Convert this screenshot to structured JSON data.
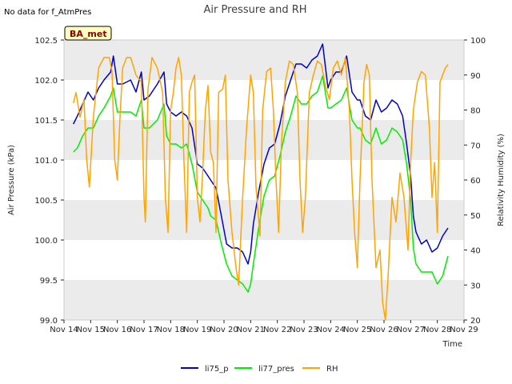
{
  "nodata_text": "No data for f_AtmPres",
  "badge_label": "BA_met",
  "colors": {
    "li75_p": "#0000cc",
    "li77_pres": "#00ee00",
    "RH": "#ffa500",
    "band": "#ebebeb",
    "badge_bg": "#ffffc0"
  },
  "chart_data": {
    "type": "line",
    "title": "Air Pressure and RH",
    "xlabel": "Time",
    "ylabel": "Air Pressure (kPa)",
    "y2label": "Relativity Humidity (%)",
    "xlim": [
      14,
      29
    ],
    "ylim": [
      99.0,
      102.5
    ],
    "y2lim": [
      20,
      100
    ],
    "x_ticks": [
      14,
      15,
      16,
      17,
      18,
      19,
      20,
      21,
      22,
      23,
      24,
      25,
      26,
      27,
      28,
      29
    ],
    "x_tick_labels": [
      "Nov 14",
      "Nov 15",
      "Nov 16",
      "Nov 17",
      "Nov 18",
      "Nov 19",
      "Nov 20",
      "Nov 21",
      "Nov 22",
      "Nov 23",
      "Nov 24",
      "Nov 25",
      "Nov 26",
      "Nov 27",
      "Nov 28",
      "Nov 29"
    ],
    "y_ticks": [
      "99.0",
      "99.5",
      "100.0",
      "100.5",
      "101.0",
      "101.5",
      "102.0",
      "102.5"
    ],
    "y2_ticks": [
      "20",
      "30",
      "40",
      "50",
      "60",
      "70",
      "80",
      "90",
      "100"
    ],
    "legend_position": "bottom",
    "grid": "horizontal bands",
    "series": [
      {
        "name": "li75_p",
        "axis": "left",
        "x": [
          14.35,
          14.5,
          14.7,
          14.9,
          15.1,
          15.3,
          15.5,
          15.75,
          15.85,
          16.0,
          16.2,
          16.5,
          16.7,
          16.9,
          17.0,
          17.2,
          17.5,
          17.75,
          17.85,
          18.0,
          18.2,
          18.4,
          18.6,
          18.8,
          19.0,
          19.2,
          19.4,
          19.5,
          19.7,
          19.9,
          20.1,
          20.3,
          20.5,
          20.7,
          20.9,
          21.0,
          21.1,
          21.3,
          21.5,
          21.7,
          21.9,
          22.1,
          22.3,
          22.5,
          22.7,
          22.9,
          23.1,
          23.3,
          23.5,
          23.7,
          23.9,
          24.0,
          24.2,
          24.4,
          24.6,
          24.8,
          25.0,
          25.1,
          25.3,
          25.5,
          25.7,
          25.9,
          26.1,
          26.3,
          26.5,
          26.7,
          26.85,
          27.0,
          27.1,
          27.2,
          27.4,
          27.6,
          27.8,
          28.0,
          28.2,
          28.4
        ],
        "y": [
          101.45,
          101.55,
          101.7,
          101.85,
          101.75,
          101.9,
          102.0,
          102.1,
          102.3,
          101.95,
          101.95,
          102.0,
          101.85,
          102.1,
          101.75,
          101.8,
          101.95,
          102.1,
          101.7,
          101.6,
          101.55,
          101.6,
          101.55,
          101.4,
          100.95,
          100.9,
          100.8,
          100.75,
          100.65,
          100.3,
          99.95,
          99.9,
          99.9,
          99.85,
          99.7,
          99.85,
          100.2,
          100.6,
          100.95,
          101.15,
          101.2,
          101.45,
          101.8,
          102.0,
          102.2,
          102.2,
          102.15,
          102.25,
          102.3,
          102.45,
          101.9,
          102.0,
          102.1,
          102.1,
          102.3,
          101.85,
          101.75,
          101.75,
          101.55,
          101.5,
          101.75,
          101.6,
          101.65,
          101.75,
          101.7,
          101.55,
          101.2,
          100.8,
          100.3,
          100.1,
          99.95,
          100.0,
          99.85,
          99.9,
          100.05,
          100.15
        ]
      },
      {
        "name": "li77_pres",
        "axis": "left",
        "x": [
          14.35,
          14.5,
          14.7,
          14.9,
          15.1,
          15.3,
          15.5,
          15.75,
          15.85,
          16.0,
          16.2,
          16.5,
          16.7,
          16.9,
          17.0,
          17.2,
          17.5,
          17.75,
          17.85,
          18.0,
          18.2,
          18.4,
          18.6,
          18.8,
          19.0,
          19.2,
          19.4,
          19.5,
          19.7,
          19.9,
          20.1,
          20.3,
          20.5,
          20.7,
          20.9,
          21.0,
          21.1,
          21.3,
          21.5,
          21.7,
          21.9,
          22.1,
          22.3,
          22.5,
          22.7,
          22.9,
          23.1,
          23.3,
          23.5,
          23.7,
          23.9,
          24.0,
          24.2,
          24.4,
          24.6,
          24.8,
          25.0,
          25.1,
          25.3,
          25.5,
          25.7,
          25.9,
          26.1,
          26.3,
          26.5,
          26.7,
          26.85,
          27.0,
          27.1,
          27.2,
          27.4,
          27.6,
          27.8,
          28.0,
          28.2,
          28.4
        ],
        "y": [
          101.1,
          101.15,
          101.3,
          101.4,
          101.4,
          101.55,
          101.65,
          101.8,
          101.9,
          101.6,
          101.6,
          101.6,
          101.55,
          101.75,
          101.4,
          101.4,
          101.5,
          101.7,
          101.3,
          101.2,
          101.2,
          101.15,
          101.2,
          100.95,
          100.6,
          100.5,
          100.4,
          100.3,
          100.25,
          99.95,
          99.7,
          99.55,
          99.5,
          99.45,
          99.35,
          99.45,
          99.7,
          100.15,
          100.55,
          100.75,
          100.8,
          101.05,
          101.35,
          101.55,
          101.8,
          101.7,
          101.7,
          101.8,
          101.85,
          102.05,
          101.65,
          101.65,
          101.7,
          101.75,
          101.9,
          101.5,
          101.4,
          101.4,
          101.25,
          101.2,
          101.4,
          101.2,
          101.25,
          101.4,
          101.35,
          101.25,
          100.95,
          100.5,
          99.9,
          99.7,
          99.6,
          99.6,
          99.6,
          99.45,
          99.55,
          99.8
        ]
      },
      {
        "name": "RH",
        "axis": "right",
        "x": [
          14.35,
          14.45,
          14.6,
          14.75,
          14.85,
          14.95,
          15.1,
          15.3,
          15.5,
          15.7,
          15.8,
          15.9,
          16.0,
          16.1,
          16.2,
          16.35,
          16.5,
          16.7,
          16.9,
          17.0,
          17.05,
          17.15,
          17.3,
          17.5,
          17.7,
          17.8,
          17.9,
          18.0,
          18.1,
          18.2,
          18.3,
          18.4,
          18.5,
          18.6,
          18.7,
          18.8,
          18.9,
          19.0,
          19.1,
          19.2,
          19.3,
          19.4,
          19.5,
          19.6,
          19.7,
          19.8,
          19.95,
          20.05,
          20.15,
          20.3,
          20.45,
          20.55,
          20.7,
          20.85,
          21.0,
          21.1,
          21.2,
          21.35,
          21.45,
          21.6,
          21.75,
          21.85,
          21.95,
          22.05,
          22.15,
          22.3,
          22.45,
          22.6,
          22.75,
          22.85,
          22.95,
          23.05,
          23.2,
          23.35,
          23.5,
          23.65,
          23.8,
          23.95,
          24.1,
          24.25,
          24.4,
          24.55,
          24.7,
          24.8,
          24.9,
          25.0,
          25.1,
          25.25,
          25.35,
          25.45,
          25.55,
          25.7,
          25.85,
          25.95,
          26.05,
          26.15,
          26.3,
          26.45,
          26.6,
          26.75,
          26.9,
          27.0,
          27.1,
          27.25,
          27.4,
          27.55,
          27.7,
          27.8,
          27.9,
          28.0,
          28.1,
          28.2,
          28.3,
          28.4
        ],
        "y": [
          82,
          85,
          78,
          83,
          66,
          58,
          78,
          92,
          95,
          95,
          91,
          66,
          60,
          78,
          92,
          95,
          95,
          90,
          88,
          55,
          48,
          86,
          95,
          92,
          85,
          55,
          45,
          80,
          85,
          92,
          95,
          90,
          65,
          45,
          85,
          88,
          90,
          55,
          48,
          62,
          80,
          87,
          68,
          65,
          45,
          85,
          86,
          90,
          60,
          45,
          35,
          30,
          55,
          75,
          90,
          85,
          58,
          44,
          80,
          91,
          92,
          80,
          60,
          45,
          70,
          88,
          94,
          93,
          85,
          60,
          45,
          55,
          85,
          90,
          94,
          93,
          87,
          83,
          92,
          94,
          90,
          95,
          80,
          60,
          45,
          35,
          60,
          88,
          93,
          90,
          60,
          35,
          40,
          25,
          20,
          32,
          55,
          48,
          62,
          55,
          40,
          65,
          80,
          88,
          91,
          90,
          75,
          55,
          65,
          45,
          88,
          90,
          92,
          93
        ]
      }
    ]
  }
}
